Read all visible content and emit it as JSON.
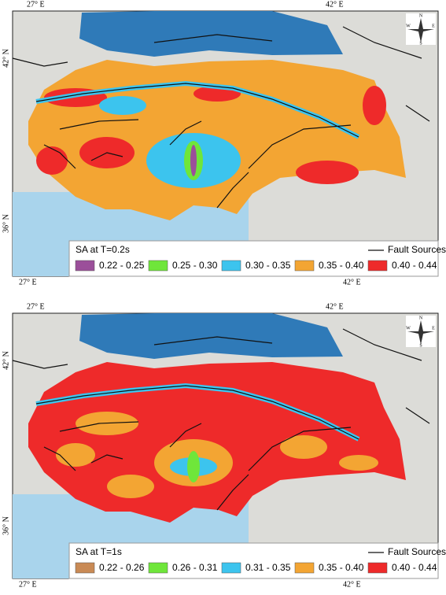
{
  "maps": [
    {
      "coordinate_labels": {
        "top_left": "27° E",
        "top_right": "42° E",
        "left_upper": "42° N",
        "left_lower": "36° N",
        "bottom_left": "27° E",
        "bottom_right": "42° E"
      },
      "compass": {
        "north": "N",
        "south": "S",
        "east": "E",
        "west": "W"
      },
      "legend": {
        "title": "SA at T=0.2s",
        "fault_label": "Fault Sources",
        "items": [
          {
            "label": "0.22 - 0.25",
            "color": "#9b4f9a"
          },
          {
            "label": "0.25 - 0.30",
            "color": "#6fe63a"
          },
          {
            "label": "0.30 - 0.35",
            "color": "#3cc4ee"
          },
          {
            "label": "0.35 - 0.40",
            "color": "#f3a533"
          },
          {
            "label": "0.40 - 0.44",
            "color": "#ee2a2a"
          }
        ]
      }
    },
    {
      "coordinate_labels": {
        "top_left": "27° E",
        "top_right": "42° E",
        "left_upper": "42° N",
        "left_lower": "36° N",
        "bottom_left": "27° E",
        "bottom_right": "42° E"
      },
      "compass": {
        "north": "N",
        "south": "S",
        "east": "E",
        "west": "W"
      },
      "legend": {
        "title": "SA at T=1s",
        "fault_label": "Fault Sources",
        "items": [
          {
            "label": "0.22 - 0.26",
            "color": "#c98a55"
          },
          {
            "label": "0.26 - 0.31",
            "color": "#6fe63a"
          },
          {
            "label": "0.31 - 0.35",
            "color": "#3cc4ee"
          },
          {
            "label": "0.35 - 0.40",
            "color": "#f3a533"
          },
          {
            "label": "0.40 - 0.44",
            "color": "#ee2a2a"
          }
        ]
      }
    }
  ]
}
